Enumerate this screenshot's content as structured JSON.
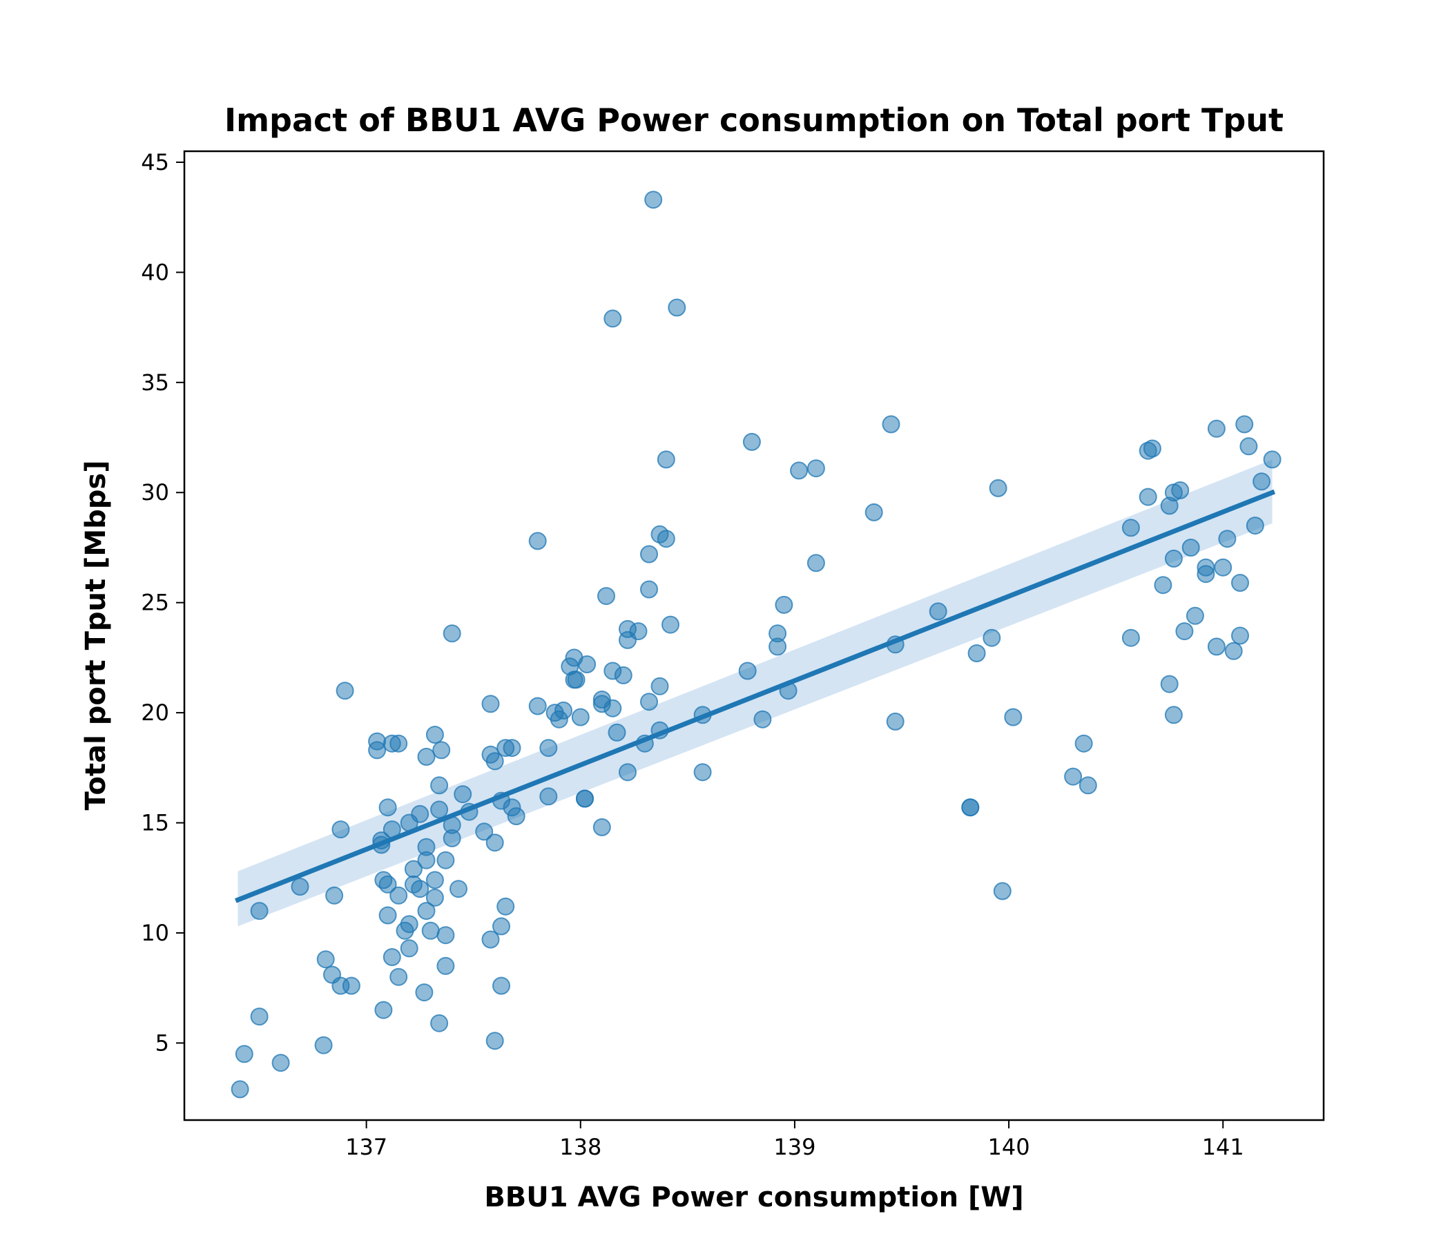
{
  "chart_data": {
    "type": "scatter",
    "title": "Impact of BBU1 AVG Power consumption on Total port Tput",
    "xlabel": "BBU1 AVG Power consumption [W]",
    "ylabel": "Total port Tput [Mbps]",
    "xlim": [
      136.15,
      141.47
    ],
    "ylim": [
      1.5,
      45.5
    ],
    "xticks": [
      137,
      138,
      139,
      140,
      141
    ],
    "yticks": [
      5,
      10,
      15,
      20,
      25,
      30,
      35,
      40,
      45
    ],
    "grid": false,
    "legend": null,
    "colors": {
      "points": "#1f77b4",
      "line": "#1f77b4",
      "band": "#c6dbef"
    },
    "regression": {
      "x": [
        136.4,
        141.23
      ],
      "y": [
        11.5,
        30.0
      ],
      "ci_lower": [
        10.3,
        28.6
      ],
      "ci_upper": [
        12.8,
        31.5
      ]
    },
    "points": [
      [
        136.41,
        2.9
      ],
      [
        136.43,
        4.5
      ],
      [
        136.5,
        6.2
      ],
      [
        136.5,
        11.0
      ],
      [
        136.6,
        4.1
      ],
      [
        136.69,
        12.1
      ],
      [
        136.8,
        4.9
      ],
      [
        136.81,
        8.8
      ],
      [
        136.84,
        8.1
      ],
      [
        136.85,
        11.7
      ],
      [
        136.88,
        7.6
      ],
      [
        136.88,
        14.7
      ],
      [
        136.9,
        21.0
      ],
      [
        136.93,
        7.6
      ],
      [
        137.05,
        18.7
      ],
      [
        137.05,
        18.3
      ],
      [
        137.07,
        14.2
      ],
      [
        137.07,
        14.0
      ],
      [
        137.08,
        6.5
      ],
      [
        137.08,
        12.4
      ],
      [
        137.1,
        15.7
      ],
      [
        137.1,
        12.2
      ],
      [
        137.1,
        10.8
      ],
      [
        137.12,
        8.9
      ],
      [
        137.12,
        18.6
      ],
      [
        137.12,
        14.7
      ],
      [
        137.15,
        18.6
      ],
      [
        137.15,
        8.0
      ],
      [
        137.15,
        11.7
      ],
      [
        137.18,
        10.1
      ],
      [
        137.2,
        10.4
      ],
      [
        137.2,
        9.3
      ],
      [
        137.2,
        15.0
      ],
      [
        137.22,
        12.9
      ],
      [
        137.22,
        12.2
      ],
      [
        137.25,
        15.4
      ],
      [
        137.25,
        12.0
      ],
      [
        137.27,
        7.3
      ],
      [
        137.28,
        18.0
      ],
      [
        137.28,
        13.9
      ],
      [
        137.28,
        13.3
      ],
      [
        137.28,
        11.0
      ],
      [
        137.3,
        10.1
      ],
      [
        137.32,
        19.0
      ],
      [
        137.32,
        12.4
      ],
      [
        137.32,
        11.6
      ],
      [
        137.34,
        16.7
      ],
      [
        137.34,
        15.6
      ],
      [
        137.34,
        5.9
      ],
      [
        137.35,
        18.3
      ],
      [
        137.37,
        13.3
      ],
      [
        137.37,
        9.9
      ],
      [
        137.37,
        8.5
      ],
      [
        137.4,
        23.6
      ],
      [
        137.4,
        14.9
      ],
      [
        137.4,
        14.3
      ],
      [
        137.43,
        12.0
      ],
      [
        137.45,
        16.3
      ],
      [
        137.48,
        15.5
      ],
      [
        137.55,
        14.6
      ],
      [
        137.58,
        20.4
      ],
      [
        137.58,
        18.1
      ],
      [
        137.58,
        9.7
      ],
      [
        137.6,
        17.8
      ],
      [
        137.6,
        14.1
      ],
      [
        137.6,
        5.1
      ],
      [
        137.63,
        16.0
      ],
      [
        137.63,
        10.3
      ],
      [
        137.63,
        7.6
      ],
      [
        137.65,
        18.4
      ],
      [
        137.65,
        11.2
      ],
      [
        137.68,
        15.7
      ],
      [
        137.7,
        15.3
      ],
      [
        137.68,
        18.4
      ],
      [
        137.8,
        27.8
      ],
      [
        137.8,
        20.3
      ],
      [
        137.85,
        18.4
      ],
      [
        137.85,
        16.2
      ],
      [
        137.88,
        20.0
      ],
      [
        137.9,
        19.7
      ],
      [
        137.92,
        20.1
      ],
      [
        137.95,
        22.1
      ],
      [
        137.97,
        22.5
      ],
      [
        137.97,
        21.5
      ],
      [
        137.98,
        21.5
      ],
      [
        138.0,
        19.8
      ],
      [
        138.02,
        16.1
      ],
      [
        138.02,
        16.1
      ],
      [
        138.03,
        22.2
      ],
      [
        138.1,
        20.6
      ],
      [
        138.1,
        20.4
      ],
      [
        138.1,
        14.8
      ],
      [
        138.12,
        25.3
      ],
      [
        138.15,
        37.9
      ],
      [
        138.15,
        21.9
      ],
      [
        138.15,
        20.2
      ],
      [
        138.17,
        19.1
      ],
      [
        138.2,
        21.7
      ],
      [
        138.22,
        23.8
      ],
      [
        138.22,
        23.3
      ],
      [
        138.22,
        17.3
      ],
      [
        138.27,
        23.7
      ],
      [
        138.3,
        18.6
      ],
      [
        138.32,
        27.2
      ],
      [
        138.32,
        25.6
      ],
      [
        138.32,
        20.5
      ],
      [
        138.34,
        43.3
      ],
      [
        138.37,
        28.1
      ],
      [
        138.37,
        21.2
      ],
      [
        138.37,
        19.2
      ],
      [
        138.4,
        31.5
      ],
      [
        138.4,
        27.9
      ],
      [
        138.42,
        24.0
      ],
      [
        138.45,
        38.4
      ],
      [
        138.57,
        19.9
      ],
      [
        138.57,
        17.3
      ],
      [
        138.78,
        21.9
      ],
      [
        138.8,
        32.3
      ],
      [
        138.85,
        19.7
      ],
      [
        138.92,
        23.6
      ],
      [
        138.92,
        23.0
      ],
      [
        138.95,
        24.9
      ],
      [
        138.97,
        21.0
      ],
      [
        139.02,
        31.0
      ],
      [
        139.1,
        31.1
      ],
      [
        139.1,
        26.8
      ],
      [
        139.37,
        29.1
      ],
      [
        139.45,
        33.1
      ],
      [
        139.47,
        23.1
      ],
      [
        139.47,
        19.6
      ],
      [
        139.67,
        24.6
      ],
      [
        139.82,
        15.7
      ],
      [
        139.82,
        15.7
      ],
      [
        139.85,
        22.7
      ],
      [
        139.92,
        23.4
      ],
      [
        139.95,
        30.2
      ],
      [
        139.97,
        11.9
      ],
      [
        140.02,
        19.8
      ],
      [
        140.3,
        17.1
      ],
      [
        140.35,
        18.6
      ],
      [
        140.37,
        16.7
      ],
      [
        140.57,
        28.4
      ],
      [
        140.57,
        23.4
      ],
      [
        140.65,
        31.9
      ],
      [
        140.65,
        29.8
      ],
      [
        140.67,
        32.0
      ],
      [
        140.72,
        25.8
      ],
      [
        140.75,
        29.4
      ],
      [
        140.75,
        21.3
      ],
      [
        140.77,
        30.0
      ],
      [
        140.77,
        27.0
      ],
      [
        140.77,
        19.9
      ],
      [
        140.8,
        30.1
      ],
      [
        140.82,
        23.7
      ],
      [
        140.85,
        27.5
      ],
      [
        140.87,
        24.4
      ],
      [
        140.92,
        26.6
      ],
      [
        140.92,
        26.3
      ],
      [
        140.97,
        32.9
      ],
      [
        140.97,
        23.0
      ],
      [
        141.0,
        26.6
      ],
      [
        141.02,
        27.9
      ],
      [
        141.05,
        22.8
      ],
      [
        141.08,
        25.9
      ],
      [
        141.08,
        23.5
      ],
      [
        141.1,
        33.1
      ],
      [
        141.12,
        32.1
      ],
      [
        141.15,
        28.5
      ],
      [
        141.18,
        30.5
      ],
      [
        141.23,
        31.5
      ]
    ]
  }
}
